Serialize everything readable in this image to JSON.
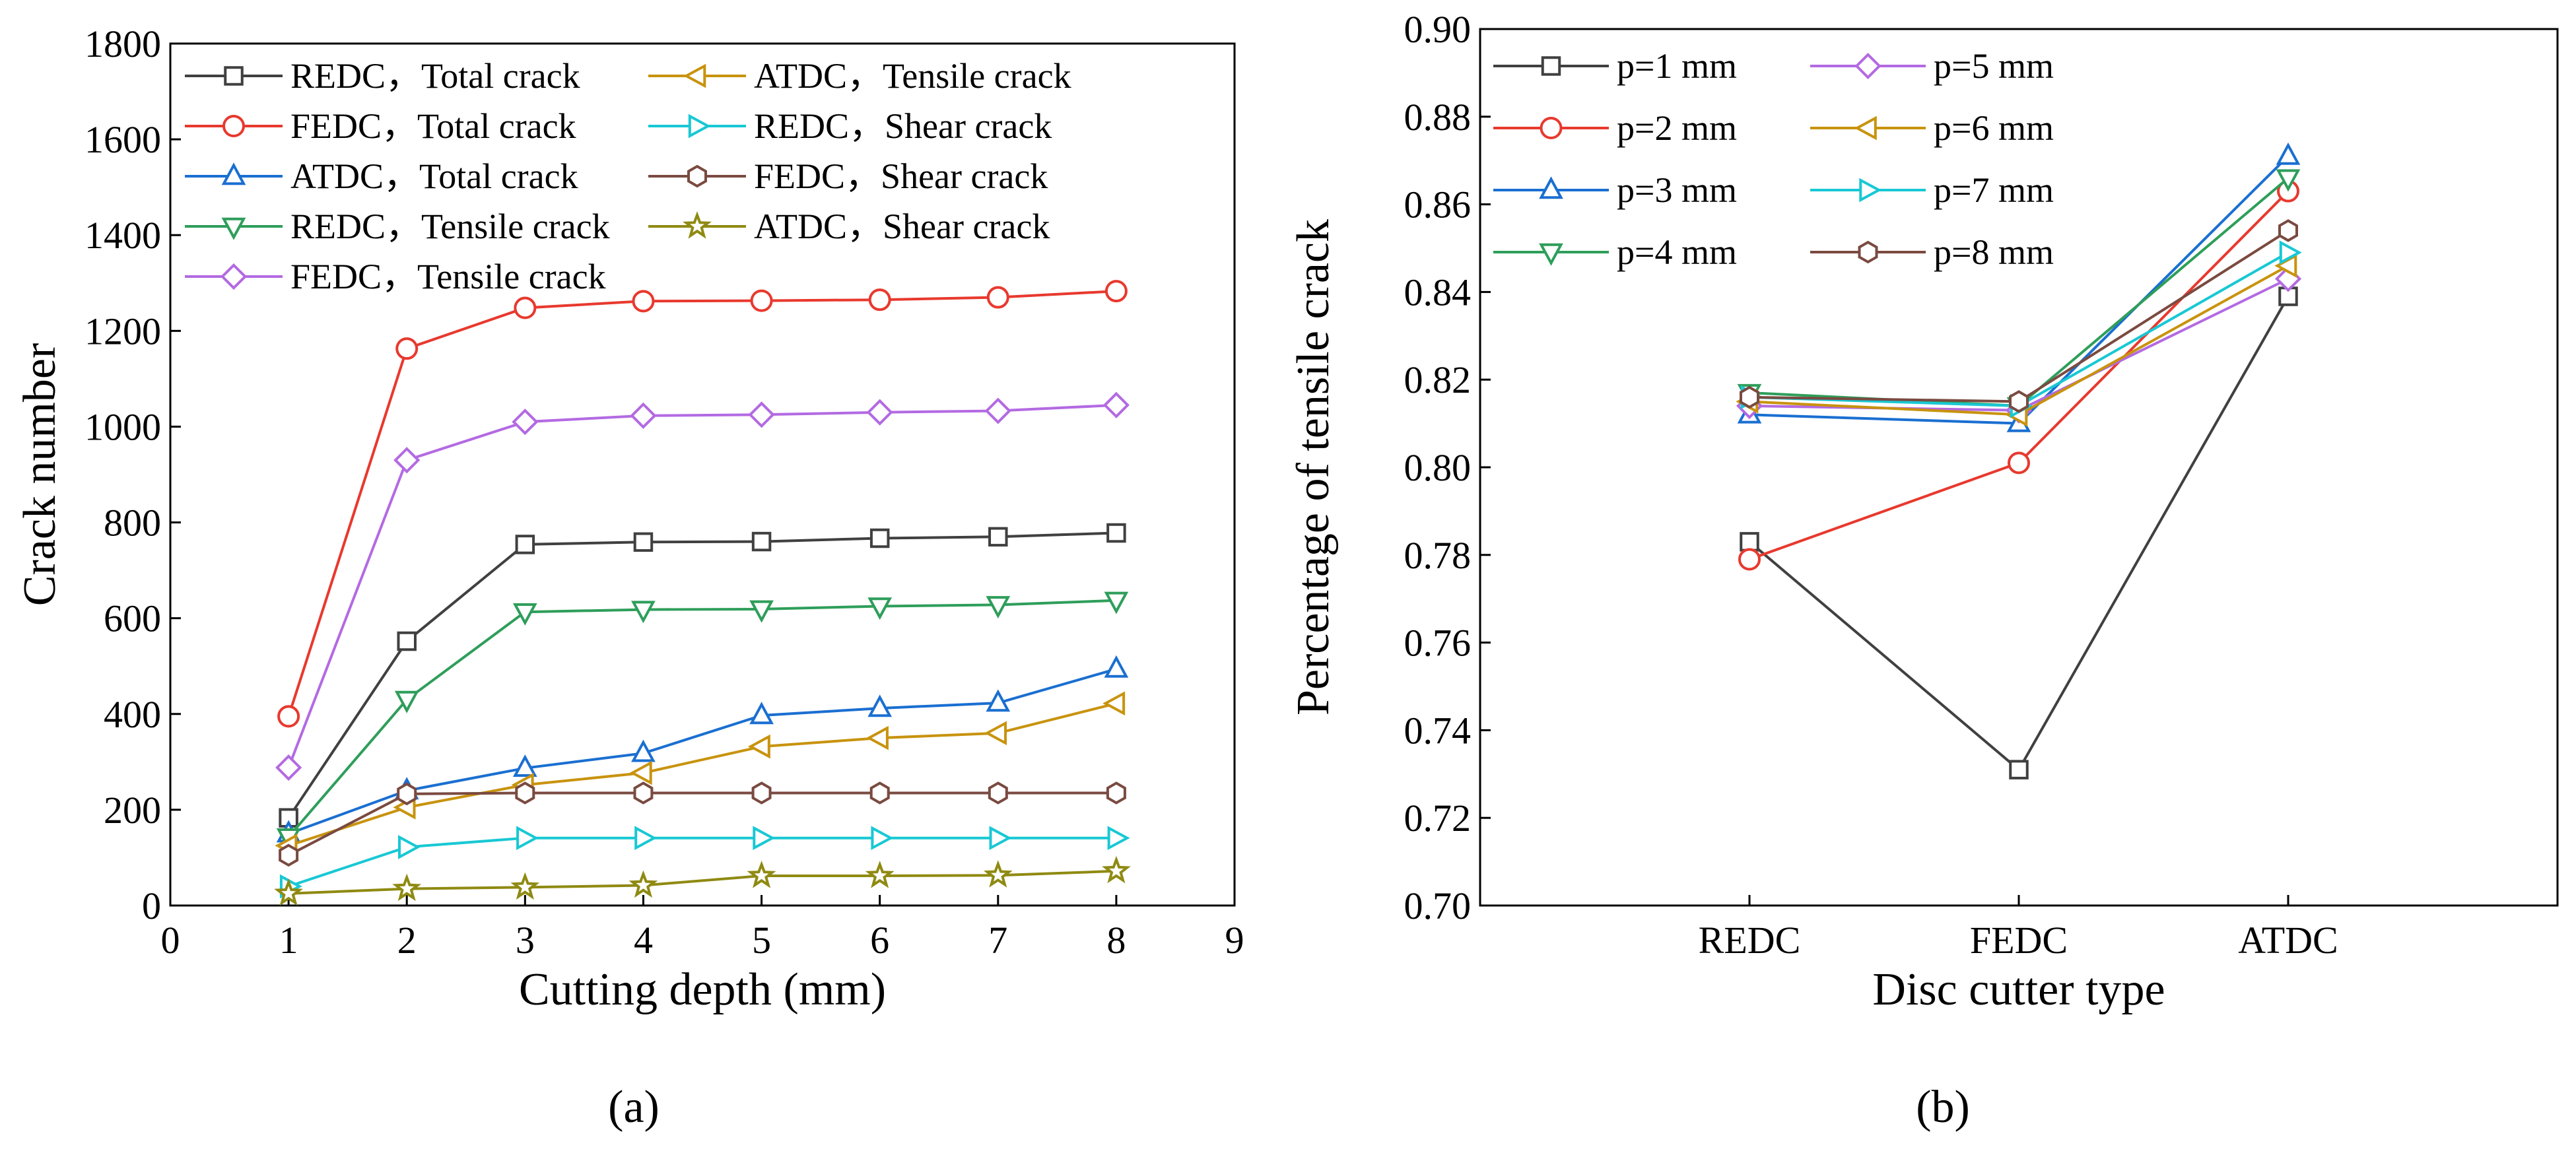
{
  "figure": {
    "panel_labels": [
      "(a)",
      "(b)"
    ],
    "colors": {
      "black": "#404040",
      "red": "#e8392e",
      "blue": "#1a6fd1",
      "green": "#2e9e5a",
      "purple": "#b36ae2",
      "gold": "#c8930e",
      "cyan": "#18c8d4",
      "brown": "#7a4a40",
      "olive": "#8f8a12"
    }
  },
  "chart_data": [
    {
      "type": "line",
      "panel": "(a)",
      "title": "",
      "xlabel": "Cutting depth (mm)",
      "ylabel": "Crack number",
      "xlim": [
        0,
        9
      ],
      "ylim": [
        0,
        1800
      ],
      "xticks": [
        "0",
        "1",
        "2",
        "3",
        "4",
        "5",
        "6",
        "7",
        "8",
        "9"
      ],
      "yticks": [
        "0",
        "200",
        "400",
        "600",
        "800",
        "1000",
        "1200",
        "1400",
        "1600",
        "1800"
      ],
      "x": [
        1,
        2,
        3,
        4,
        5,
        6,
        7,
        8
      ],
      "legend_columns": 2,
      "legend_position": "top-left",
      "series": [
        {
          "name": "REDC，Total crack",
          "color": "#404040",
          "marker": "square",
          "values": [
            183,
            552,
            754,
            759,
            760,
            767,
            770,
            778
          ]
        },
        {
          "name": "FEDC，Total crack",
          "color": "#e8392e",
          "marker": "circle",
          "values": [
            395,
            1163,
            1248,
            1262,
            1263,
            1265,
            1270,
            1283
          ]
        },
        {
          "name": "ATDC，Total crack",
          "color": "#1a6fd1",
          "marker": "triangle-up",
          "values": [
            150,
            240,
            287,
            318,
            397,
            412,
            423,
            494
          ]
        },
        {
          "name": "REDC，Tensile crack",
          "color": "#2e9e5a",
          "marker": "triangle-down",
          "values": [
            143,
            430,
            613,
            618,
            619,
            625,
            628,
            637
          ]
        },
        {
          "name": "FEDC，Tensile crack",
          "color": "#b36ae2",
          "marker": "diamond",
          "values": [
            288,
            930,
            1010,
            1023,
            1025,
            1030,
            1033,
            1045
          ]
        },
        {
          "name": "ATDC，Tensile crack",
          "color": "#c8930e",
          "marker": "triangle-left",
          "values": [
            125,
            205,
            252,
            277,
            332,
            350,
            360,
            422
          ]
        },
        {
          "name": "REDC，Shear crack",
          "color": "#18c8d4",
          "marker": "triangle-right",
          "values": [
            40,
            122,
            141,
            141,
            141,
            141,
            141,
            141
          ]
        },
        {
          "name": "FEDC，Shear crack",
          "color": "#7a4a40",
          "marker": "hexagon",
          "values": [
            105,
            233,
            235,
            235,
            235,
            235,
            235,
            235
          ]
        },
        {
          "name": "ATDC，Shear crack",
          "color": "#8f8a12",
          "marker": "star",
          "values": [
            25,
            35,
            38,
            42,
            62,
            62,
            63,
            72
          ]
        }
      ]
    },
    {
      "type": "line",
      "panel": "(b)",
      "title": "",
      "xlabel": "Disc cutter type",
      "ylabel": "Percentage of tensile crack",
      "categories": [
        "REDC",
        "FEDC",
        "ATDC"
      ],
      "ylim": [
        0.7,
        0.9
      ],
      "yticks": [
        "0.70",
        "0.72",
        "0.74",
        "0.76",
        "0.78",
        "0.80",
        "0.82",
        "0.84",
        "0.86",
        "0.88",
        "0.90"
      ],
      "legend_columns": 2,
      "legend_position": "top-left",
      "series": [
        {
          "name": "p=1 mm",
          "color": "#404040",
          "marker": "square",
          "values": [
            0.783,
            0.731,
            0.839
          ]
        },
        {
          "name": "p=2 mm",
          "color": "#e8392e",
          "marker": "circle",
          "values": [
            0.779,
            0.801,
            0.863
          ]
        },
        {
          "name": "p=3 mm",
          "color": "#1a6fd1",
          "marker": "triangle-up",
          "values": [
            0.812,
            0.81,
            0.871
          ]
        },
        {
          "name": "p=4 mm",
          "color": "#2e9e5a",
          "marker": "triangle-down",
          "values": [
            0.817,
            0.814,
            0.866
          ]
        },
        {
          "name": "p=5 mm",
          "color": "#b36ae2",
          "marker": "diamond",
          "values": [
            0.814,
            0.813,
            0.843
          ]
        },
        {
          "name": "p=6 mm",
          "color": "#c8930e",
          "marker": "triangle-left",
          "values": [
            0.815,
            0.812,
            0.846
          ]
        },
        {
          "name": "p=7 mm",
          "color": "#18c8d4",
          "marker": "triangle-right",
          "values": [
            0.816,
            0.814,
            0.849
          ]
        },
        {
          "name": "p=8 mm",
          "color": "#7a4a40",
          "marker": "hexagon",
          "values": [
            0.816,
            0.815,
            0.854
          ]
        }
      ]
    }
  ]
}
